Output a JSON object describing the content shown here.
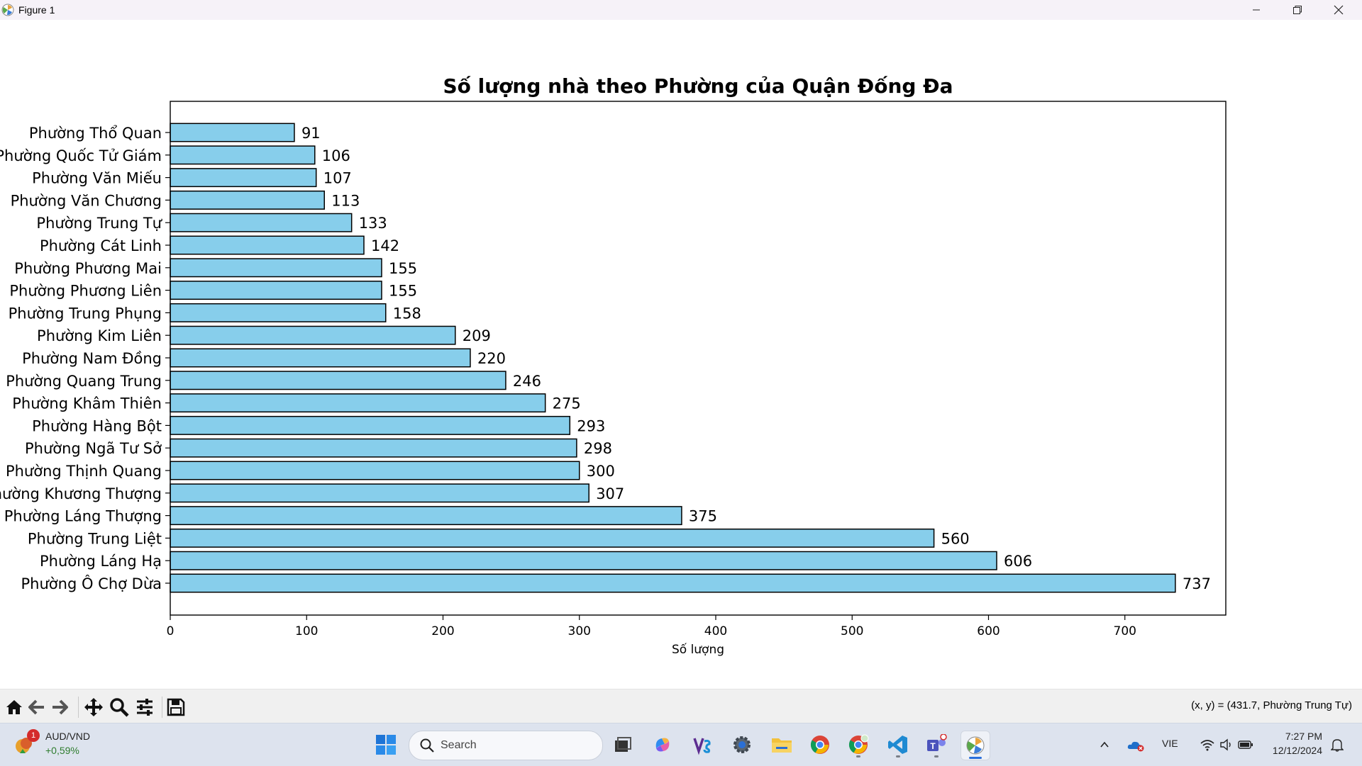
{
  "window": {
    "title": "Figure 1",
    "minimize_icon": "minimize-icon",
    "maximize_icon": "restore-icon",
    "close_icon": "close-icon"
  },
  "chart_data": {
    "type": "bar",
    "orientation": "horizontal",
    "title": "Số lượng nhà theo Phường của Quận Đống Đa",
    "xlabel": "Số lượng",
    "ylabel": "",
    "xlim": [
      0,
      774
    ],
    "xticks": [
      0,
      100,
      200,
      300,
      400,
      500,
      600,
      700
    ],
    "bar_color": "#87ceeb",
    "edge_color": "#000000",
    "categories": [
      "Phường Ô Chợ Dừa",
      "Phường Láng Hạ",
      "Phường Trung Liệt",
      "Phường Láng Thượng",
      "Phường Khương Thượng",
      "Phường Thịnh Quang",
      "Phường Ngã Tư Sở",
      "Phường Hàng Bột",
      "Phường Khâm Thiên",
      "Phường Quang Trung",
      "Phường Nam Đồng",
      "Phường Kim Liên",
      "Phường Trung Phụng",
      "Phường Phương Liên",
      "Phường Phương Mai",
      "Phường Cát Linh",
      "Phường Trung Tự",
      "Phường Văn Chương",
      "Phường Văn Miếu",
      "Phường Quốc Tử Giám",
      "Phường Thổ Quan"
    ],
    "values": [
      737,
      606,
      560,
      375,
      307,
      300,
      298,
      293,
      275,
      246,
      220,
      209,
      158,
      155,
      155,
      142,
      133,
      113,
      107,
      106,
      91
    ],
    "grid": false,
    "legend": "none"
  },
  "toolbar": {
    "items": [
      {
        "name": "home-icon"
      },
      {
        "name": "back-arrow-icon"
      },
      {
        "name": "forward-arrow-icon"
      },
      {
        "name": "pan-move-icon"
      },
      {
        "name": "zoom-magnifier-icon"
      },
      {
        "name": "configure-subplots-icon"
      },
      {
        "name": "save-floppy-icon"
      }
    ],
    "coordinates": "(x, y) = (431.7, Phường Trung Tự)"
  },
  "taskbar": {
    "widget": {
      "pair": "AUD/VND",
      "change": "+0,59%",
      "badge": "1"
    },
    "search_placeholder": "Search",
    "apps": [
      "windows-start-icon",
      "task-view-icon",
      "copilot-icon",
      "vs-icon",
      "settings-gear-icon",
      "file-explorer-icon",
      "chrome-icon",
      "chrome-profile-icon",
      "vscode-icon",
      "teams-icon",
      "matplotlib-figure-icon"
    ],
    "tray": {
      "language": "VIE",
      "time": "7:27 PM",
      "date": "12/12/2024"
    }
  }
}
